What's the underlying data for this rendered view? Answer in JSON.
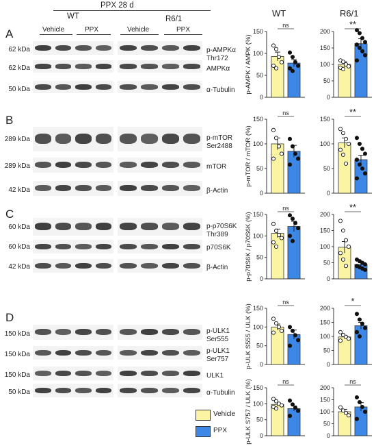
{
  "header": {
    "treatment": "PPX 28 d",
    "wt": "WT",
    "r61": "R6/1",
    "vehicle": "Vehicle",
    "ppx": "PPX",
    "vehicle2": "Vehicle",
    "ppx2": "PPX",
    "col_wt": "WT",
    "col_r61": "R6/1"
  },
  "panels": {
    "A": {
      "letter": "A",
      "rows": [
        {
          "kda": "62 kDa",
          "protein": "p-AMPKα",
          "protein2": "Thr172"
        },
        {
          "kda": "62 kDa",
          "protein": "AMPKα",
          "protein2": ""
        },
        {
          "kda": "50 kDa",
          "protein": "α-Tubulin",
          "protein2": ""
        }
      ]
    },
    "B": {
      "letter": "B",
      "rows": [
        {
          "kda": "289 kDa",
          "protein": "p-mTOR",
          "protein2": "Ser2488"
        },
        {
          "kda": "289 kDa",
          "protein": "mTOR",
          "protein2": ""
        },
        {
          "kda": "42 kDa",
          "protein": "β-Actin",
          "protein2": ""
        }
      ]
    },
    "C": {
      "letter": "C",
      "rows": [
        {
          "kda": "60 kDa",
          "protein": "p-p70S6K",
          "protein2": "Thr389"
        },
        {
          "kda": "60 kDa",
          "protein": "p70S6K",
          "protein2": ""
        },
        {
          "kda": "42 kDa",
          "protein": "β-Actin",
          "protein2": ""
        }
      ]
    },
    "D": {
      "letter": "D",
      "rows": [
        {
          "kda": "150 kDa",
          "protein": "p-ULK1",
          "protein2": "Ser555"
        },
        {
          "kda": "150 kDa",
          "protein": "p-ULK1",
          "protein2": "Ser757"
        },
        {
          "kda": "150 kDa",
          "protein": "ULK1",
          "protein2": ""
        },
        {
          "kda": "50 kDa",
          "protein": "α-Tubulin",
          "protein2": ""
        }
      ]
    }
  },
  "legend": {
    "vehicle": "Vehicle",
    "ppx": "PPX",
    "vehicle_color": "#fbf5a3",
    "ppx_color": "#3d87e6"
  },
  "chart_data": [
    {
      "type": "bar",
      "ylabel": "p-AMPK / AMPK (%)",
      "group": "WT",
      "ylim": [
        0,
        150
      ],
      "ticks": [
        0,
        50,
        100,
        150
      ],
      "categories": [
        "Vehicle",
        "PPX"
      ],
      "values": [
        93,
        78
      ],
      "errors": [
        10,
        8
      ],
      "sig": "ns",
      "points": [
        [
          118,
          110,
          92,
          80,
          72,
          66
        ],
        [
          102,
          92,
          80,
          72,
          66,
          60
        ]
      ]
    },
    {
      "type": "bar",
      "ylabel": "",
      "group": "R6/1",
      "ylim": [
        0,
        200
      ],
      "ticks": [
        0,
        50,
        100,
        150,
        200
      ],
      "categories": [
        "Vehicle",
        "PPX"
      ],
      "values": [
        100,
        163
      ],
      "errors": [
        8,
        15
      ],
      "sig": "**",
      "points": [
        [
          112,
          108,
          100,
          94,
          90,
          86
        ],
        [
          225,
          195,
          180,
          168,
          160,
          150,
          140,
          128,
          112
        ]
      ]
    },
    {
      "type": "bar",
      "ylabel": "p-mTOR / mTOR (%)",
      "group": "WT",
      "ylim": [
        0,
        150
      ],
      "ticks": [
        0,
        50,
        100,
        150
      ],
      "categories": [
        "Vehicle",
        "PPX"
      ],
      "values": [
        100,
        85
      ],
      "errors": [
        12,
        12
      ],
      "sig": "ns",
      "points": [
        [
          128,
          112,
          95,
          80,
          70
        ],
        [
          110,
          95,
          80,
          70,
          58
        ]
      ]
    },
    {
      "type": "bar",
      "ylabel": "",
      "group": "R6/1",
      "ylim": [
        0,
        150
      ],
      "ticks": [
        0,
        50,
        100,
        150
      ],
      "categories": [
        "Vehicle",
        "PPX"
      ],
      "values": [
        102,
        68
      ],
      "errors": [
        10,
        9
      ],
      "sig": "**",
      "points": [
        [
          130,
          122,
          110,
          100,
          88,
          78,
          60
        ],
        [
          112,
          100,
          90,
          80,
          68,
          58,
          50,
          40,
          30
        ]
      ]
    },
    {
      "type": "bar",
      "ylabel": "p-p70S6K / p70S6K (%)",
      "group": "WT",
      "ylim": [
        0,
        150
      ],
      "ticks": [
        0,
        50,
        100,
        150
      ],
      "categories": [
        "Vehicle",
        "PPX"
      ],
      "values": [
        106,
        122
      ],
      "errors": [
        10,
        12
      ],
      "sig": "ns",
      "points": [
        [
          128,
          112,
          102,
          95,
          85,
          75
        ],
        [
          148,
          140,
          130,
          118,
          100,
          88
        ]
      ]
    },
    {
      "type": "bar",
      "ylabel": "",
      "group": "R6/1",
      "ylim": [
        0,
        200
      ],
      "ticks": [
        0,
        50,
        100,
        150,
        200
      ],
      "categories": [
        "Vehicle",
        "PPX"
      ],
      "values": [
        98,
        45
      ],
      "errors": [
        18,
        5
      ],
      "sig": "**",
      "points": [
        [
          180,
          150,
          120,
          100,
          80,
          60,
          40
        ],
        [
          60,
          55,
          50,
          45,
          40,
          36,
          32,
          28
        ]
      ]
    },
    {
      "type": "bar",
      "ylabel": "p-ULK S555 / ULK (%)",
      "group": "WT",
      "ylim": [
        0,
        150
      ],
      "ticks": [
        0,
        50,
        100,
        150
      ],
      "categories": [
        "Vehicle",
        "PPX"
      ],
      "values": [
        100,
        80
      ],
      "errors": [
        8,
        12
      ],
      "sig": "ns",
      "points": [
        [
          122,
          110,
          100,
          90,
          85
        ],
        [
          100,
          90,
          78,
          65,
          50
        ]
      ]
    },
    {
      "type": "bar",
      "ylabel": "",
      "group": "R6/1",
      "ylim": [
        0,
        200
      ],
      "ticks": [
        0,
        50,
        100,
        150,
        200
      ],
      "categories": [
        "Vehicle",
        "PPX"
      ],
      "values": [
        98,
        138
      ],
      "errors": [
        6,
        12
      ],
      "sig": "*",
      "points": [
        [
          115,
          105,
          98,
          92,
          85
        ],
        [
          180,
          160,
          145,
          130,
          115,
          100
        ]
      ]
    },
    {
      "type": "bar",
      "ylabel": "p-ULK S757 / ULK (%)",
      "group": "WT",
      "ylim": [
        0,
        150
      ],
      "ticks": [
        0,
        50,
        100,
        150
      ],
      "categories": [
        "Vehicle",
        "PPX"
      ],
      "values": [
        98,
        85
      ],
      "errors": [
        5,
        8
      ],
      "sig": "ns",
      "points": [
        [
          115,
          108,
          100,
          95,
          90,
          85
        ],
        [
          110,
          98,
          88,
          78,
          62
        ]
      ]
    },
    {
      "type": "bar",
      "ylabel": "",
      "group": "R6/1",
      "ylim": [
        0,
        200
      ],
      "ticks": [
        0,
        50,
        100,
        150,
        200
      ],
      "categories": [
        "Vehicle",
        "PPX"
      ],
      "values": [
        100,
        120
      ],
      "errors": [
        10,
        18
      ],
      "sig": "ns",
      "points": [
        [
          118,
          105,
          95,
          85
        ],
        [
          160,
          140,
          120,
          100,
          70
        ]
      ]
    }
  ]
}
